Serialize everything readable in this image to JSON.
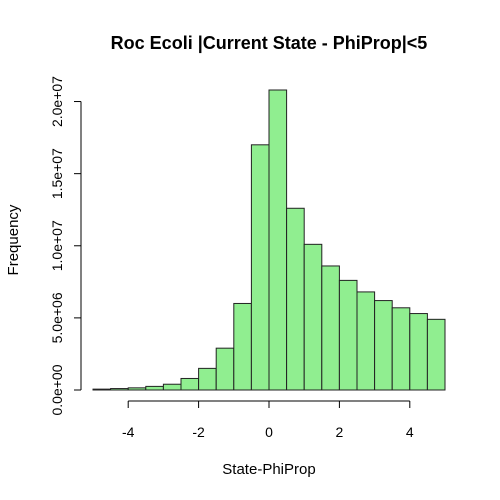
{
  "chart_data": {
    "type": "bar",
    "title": "Roc Ecoli |Current State - PhiProp|<5",
    "xlabel": "State-PhiProp",
    "ylabel": "Frequency",
    "bar_color": "#90ee90",
    "bar_edge_color": "#222222",
    "bin_width": 0.5,
    "bin_starts": [
      -5.0,
      -4.5,
      -4.0,
      -3.5,
      -3.0,
      -2.5,
      -2.0,
      -1.5,
      -1.0,
      -0.5,
      0.0,
      0.5,
      1.0,
      1.5,
      2.0,
      2.5,
      3.0,
      3.5,
      4.0,
      4.5
    ],
    "values": [
      60000,
      100000,
      150000,
      250000,
      400000,
      800000,
      1500000,
      2900000,
      6000000,
      17000000,
      20800000,
      12600000,
      10100000,
      8600000,
      7600000,
      6800000,
      6200000,
      5700000,
      5300000,
      4900000
    ],
    "xlim": [
      -5,
      5
    ],
    "ylim": [
      0,
      20800000
    ],
    "xticks": [
      -4,
      -2,
      0,
      2,
      4
    ],
    "xtick_labels": [
      "-4",
      "-2",
      "0",
      "2",
      "4"
    ],
    "yticks": [
      0,
      5000000,
      10000000,
      15000000,
      20000000
    ],
    "ytick_labels": [
      "0.0e+00",
      "5.0e+06",
      "1.0e+07",
      "1.5e+07",
      "2.0e+07"
    ],
    "grid": false,
    "legend": false
  }
}
